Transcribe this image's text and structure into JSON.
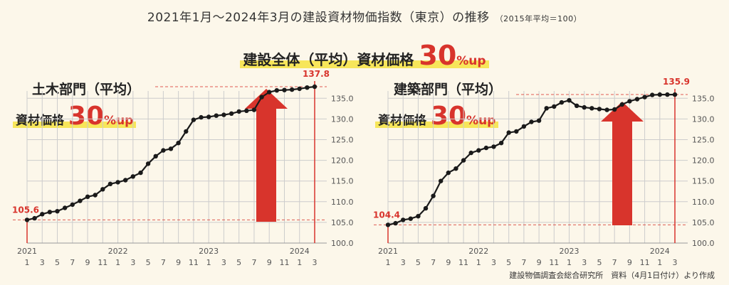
{
  "title": "2021年1月〜2024年3月の建設資材物価指数（東京）の推移",
  "title_note": "（2015年平均＝100）",
  "headline": {
    "prefix": "建設全体（平均）資材価格",
    "value": "30",
    "suffix": "%up"
  },
  "source": "建設物価調査会総合研究所　資料（4月1日付け）より作成",
  "colors": {
    "line": "#1a1a1a",
    "accent": "#d8342c",
    "grid": "#cccccc",
    "highlight": "#f7e65a"
  },
  "chart_data": [
    {
      "type": "line",
      "title": "土木部門（平均）",
      "subtitle_prefix": "資材価格",
      "subtitle_value": "30",
      "subtitle_suffix": "%up",
      "x_ticks": [
        "1",
        "3",
        "5",
        "7",
        "9",
        "11",
        "1",
        "3",
        "5",
        "7",
        "9",
        "11",
        "1",
        "3",
        "5",
        "7",
        "9",
        "11",
        "1",
        "3"
      ],
      "year_labels": [
        "2021",
        "2022",
        "2023",
        "2024"
      ],
      "ylim": [
        100,
        137.8
      ],
      "y_ticks": [
        100,
        105,
        110,
        115,
        120,
        125,
        130,
        135
      ],
      "y_tick_labels": [
        "100.0",
        "105.0",
        "110.0",
        "115.0",
        "120.0",
        "125.0",
        "130.0",
        "135.0"
      ],
      "start_label": "105.6",
      "end_label": "137.8",
      "values": [
        105.6,
        106.0,
        107.0,
        107.5,
        107.7,
        108.5,
        109.3,
        110.2,
        111.2,
        111.6,
        113.0,
        114.3,
        114.7,
        115.2,
        116.1,
        117.0,
        119.2,
        121.0,
        122.4,
        122.8,
        124.2,
        127.0,
        129.8,
        130.4,
        130.5,
        130.8,
        131.0,
        131.3,
        131.8,
        132.0,
        132.2,
        135.3,
        136.5,
        136.9,
        137.0,
        137.1,
        137.3,
        137.6,
        137.8
      ]
    },
    {
      "type": "line",
      "title": "建築部門（平均）",
      "subtitle_prefix": "資材価格",
      "subtitle_value": "30",
      "subtitle_suffix": "%up",
      "x_ticks": [
        "1",
        "3",
        "5",
        "7",
        "9",
        "11",
        "1",
        "3",
        "5",
        "7",
        "9",
        "11",
        "1",
        "3",
        "5",
        "7",
        "9",
        "11",
        "1",
        "3"
      ],
      "year_labels": [
        "2021",
        "2022",
        "2023",
        "2024"
      ],
      "ylim": [
        100,
        137.8
      ],
      "y_ticks": [
        100,
        105,
        110,
        115,
        120,
        125,
        130,
        135
      ],
      "y_tick_labels": [
        "100.0",
        "105.0",
        "110.0",
        "115.0",
        "120.0",
        "125.0",
        "130.0",
        "135.0"
      ],
      "start_label": "104.4",
      "end_label": "135.9",
      "values": [
        104.4,
        104.8,
        105.6,
        105.9,
        106.5,
        108.4,
        111.4,
        115.0,
        117.0,
        118.0,
        120.0,
        121.8,
        122.4,
        123.0,
        123.3,
        124.2,
        126.7,
        127.0,
        128.2,
        129.3,
        129.6,
        132.6,
        133.0,
        134.0,
        134.5,
        133.2,
        132.8,
        132.6,
        132.4,
        132.2,
        132.3,
        133.5,
        134.3,
        134.8,
        135.3,
        135.8,
        135.9,
        135.9,
        135.9
      ]
    }
  ]
}
